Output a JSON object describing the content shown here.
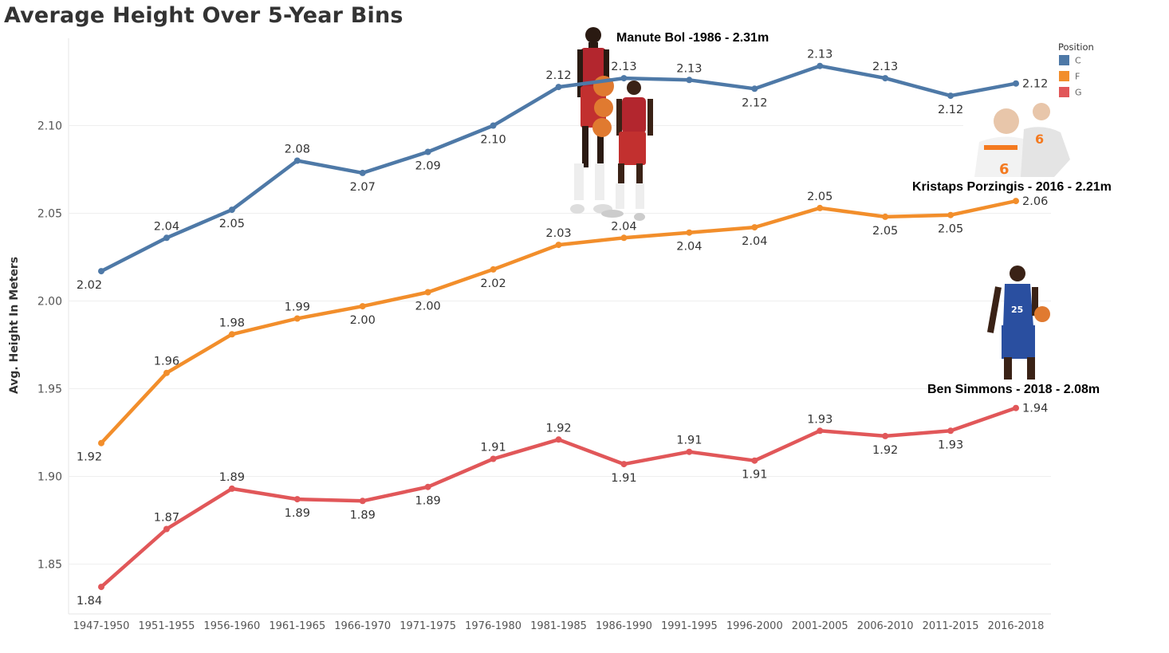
{
  "chart_data": {
    "type": "line",
    "title": "Average Height Over 5-Year Bins",
    "xlabel": "",
    "ylabel": "Avg. Height In Meters",
    "ylim": [
      1.825,
      2.155
    ],
    "yticks": [
      1.85,
      1.9,
      1.95,
      2.0,
      2.05,
      2.1
    ],
    "categories": [
      "1947-1950",
      "1951-1955",
      "1956-1960",
      "1961-1965",
      "1966-1970",
      "1971-1975",
      "1976-1980",
      "1981-1985",
      "1986-1990",
      "1991-1995",
      "1996-2000",
      "2001-2005",
      "2006-2010",
      "2011-2015",
      "2016-2018"
    ],
    "series": [
      {
        "name": "C",
        "color": "#4e79a7",
        "values": [
          2.017,
          2.036,
          2.052,
          2.08,
          2.073,
          2.085,
          2.1,
          2.122,
          2.127,
          2.126,
          2.121,
          2.134,
          2.127,
          2.117,
          2.124
        ],
        "labels": [
          "2.02",
          "2.04",
          "2.05",
          "2.08",
          "2.07",
          "2.09",
          "2.10",
          "2.12",
          "2.13",
          "2.13",
          "2.12",
          "2.13",
          "2.13",
          "2.12",
          "2.12"
        ]
      },
      {
        "name": "F",
        "color": "#f28e2b",
        "values": [
          1.919,
          1.959,
          1.981,
          1.99,
          1.997,
          2.005,
          2.018,
          2.032,
          2.036,
          2.039,
          2.042,
          2.053,
          2.048,
          2.049,
          2.057
        ],
        "labels": [
          "1.92",
          "1.96",
          "1.98",
          "1.99",
          "2.00",
          "2.00",
          "2.02",
          "2.03",
          "2.04",
          "2.04",
          "2.04",
          "2.05",
          "2.05",
          "2.05",
          "2.06"
        ]
      },
      {
        "name": "G",
        "color": "#e15759",
        "values": [
          1.837,
          1.87,
          1.893,
          1.887,
          1.886,
          1.894,
          1.91,
          1.921,
          1.907,
          1.914,
          1.909,
          1.926,
          1.923,
          1.926,
          1.939
        ],
        "labels": [
          "1.84",
          "1.87",
          "1.89",
          "1.89",
          "1.89",
          "1.89",
          "1.91",
          "1.92",
          "1.91",
          "1.91",
          "1.91",
          "1.93",
          "1.92",
          "1.93",
          "1.94"
        ]
      }
    ],
    "legend": {
      "title": "Position",
      "placement": "top-right",
      "items": [
        "C",
        "F",
        "G"
      ]
    },
    "annotations": [
      "Manute Bol -1986 - 2.31m",
      "Kristaps Porzingis - 2016 - 2.21m",
      "Ben Simmons - 2018 - 2.08m"
    ],
    "grid": true
  }
}
